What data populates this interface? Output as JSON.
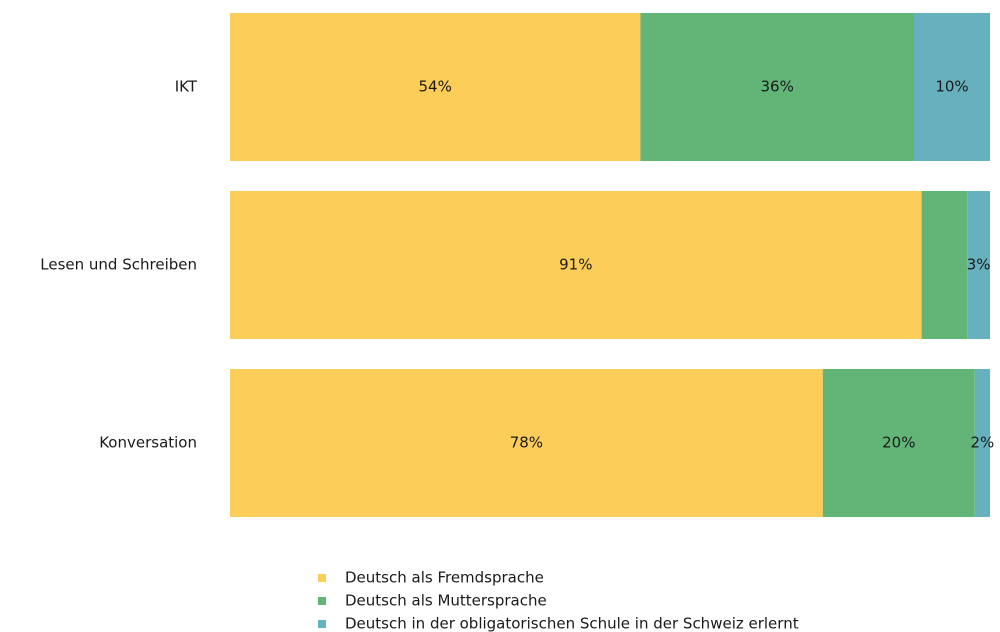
{
  "chart_data": {
    "type": "stacked-barh",
    "categories": [
      "IKT",
      "Lesen und Schreiben",
      "Konversation"
    ],
    "series": [
      {
        "name": "Deutsch als Fremdsprache",
        "color": "#fccd58",
        "values": [
          54,
          91,
          78
        ],
        "value_labels": [
          "54%",
          "91%",
          "78%"
        ]
      },
      {
        "name": "Deutsch als Muttersprache",
        "color": "#63b577",
        "values": [
          36,
          6,
          20
        ],
        "value_labels": [
          "36%",
          null,
          "20%"
        ]
      },
      {
        "name": "Deutsch in der obligatorischen Schule in der Schweiz erlernt",
        "color": "#67b1bf",
        "values": [
          10,
          3,
          2
        ],
        "value_labels": [
          "10%",
          "3%",
          "2%"
        ]
      }
    ],
    "xlim": [
      0,
      100
    ]
  }
}
